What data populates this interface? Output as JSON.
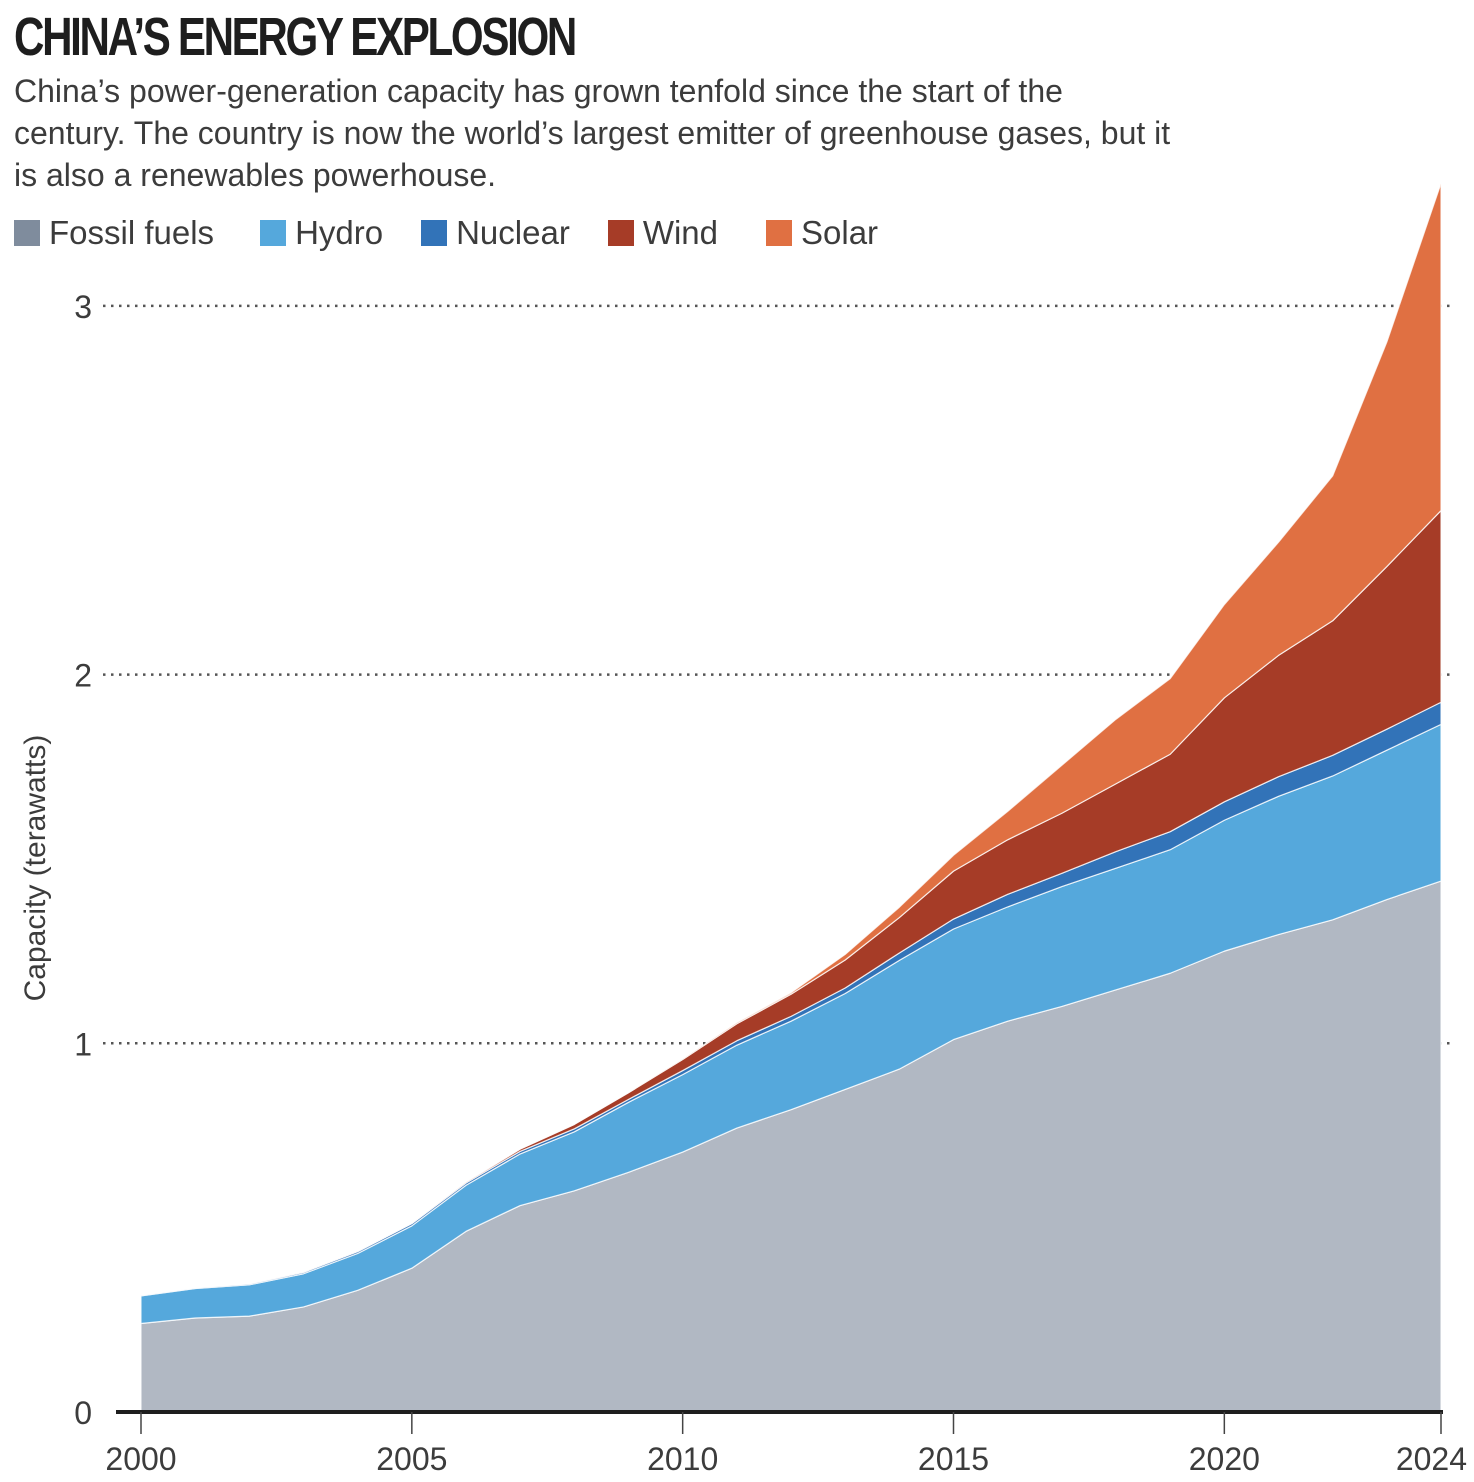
{
  "header": {
    "title": "CHINA’S ENERGY EXPLOSION",
    "subtitle": "China’s power-generation capacity has grown tenfold since the start of the century. The country is now the world’s largest emitter of greenhouse gases, but it is also a renewables powerhouse."
  },
  "chart_data": {
    "type": "area",
    "stacked": true,
    "title": "CHINA’S ENERGY EXPLOSION",
    "xlabel": "",
    "ylabel": "Capacity (terawatts)",
    "xlim": [
      2000,
      2024
    ],
    "ylim": [
      0,
      3.4
    ],
    "x_ticks": [
      2000,
      2005,
      2010,
      2015,
      2020,
      2024
    ],
    "y_ticks": [
      0,
      1,
      2,
      3
    ],
    "grid": "horizontal dotted at 1, 2, 3",
    "legend_placement": "top-left",
    "x": [
      2000,
      2001,
      2002,
      2003,
      2004,
      2005,
      2006,
      2007,
      2008,
      2009,
      2010,
      2011,
      2012,
      2013,
      2014,
      2015,
      2016,
      2017,
      2018,
      2019,
      2020,
      2021,
      2022,
      2023,
      2024
    ],
    "series": [
      {
        "name": "Fossil fuels",
        "color": "#b1b8c3",
        "legend_color": "#7f8c9d",
        "values": [
          0.24,
          0.255,
          0.26,
          0.285,
          0.33,
          0.39,
          0.49,
          0.56,
          0.6,
          0.65,
          0.705,
          0.77,
          0.82,
          0.875,
          0.93,
          1.01,
          1.06,
          1.1,
          1.145,
          1.19,
          1.25,
          1.295,
          1.335,
          1.39,
          1.44
        ]
      },
      {
        "name": "Hydro",
        "color": "#55a8dc",
        "legend_color": "#55a8dc",
        "values": [
          0.075,
          0.08,
          0.085,
          0.09,
          0.1,
          0.115,
          0.125,
          0.14,
          0.16,
          0.19,
          0.21,
          0.225,
          0.24,
          0.26,
          0.295,
          0.3,
          0.31,
          0.325,
          0.33,
          0.335,
          0.355,
          0.375,
          0.39,
          0.405,
          0.425
        ]
      },
      {
        "name": "Nuclear",
        "color": "#3273b8",
        "legend_color": "#3273b8",
        "values": [
          0.002,
          0.002,
          0.003,
          0.004,
          0.005,
          0.006,
          0.006,
          0.007,
          0.008,
          0.008,
          0.011,
          0.012,
          0.013,
          0.015,
          0.02,
          0.027,
          0.034,
          0.036,
          0.045,
          0.049,
          0.05,
          0.053,
          0.056,
          0.057,
          0.06
        ]
      },
      {
        "name": "Wind",
        "color": "#a63c27",
        "legend_color": "#a63c27",
        "values": [
          0.0,
          0.0,
          0.0,
          0.001,
          0.001,
          0.001,
          0.003,
          0.006,
          0.012,
          0.018,
          0.03,
          0.046,
          0.06,
          0.076,
          0.096,
          0.13,
          0.148,
          0.163,
          0.184,
          0.21,
          0.282,
          0.329,
          0.365,
          0.441,
          0.52
        ]
      },
      {
        "name": "Solar",
        "color": "#e07042",
        "legend_color": "#e07042",
        "values": [
          0.0,
          0.0,
          0.0,
          0.0,
          0.0,
          0.0,
          0.0,
          0.0,
          0.0,
          0.0,
          0.001,
          0.003,
          0.004,
          0.015,
          0.028,
          0.043,
          0.077,
          0.13,
          0.175,
          0.205,
          0.253,
          0.307,
          0.393,
          0.609,
          0.887
        ]
      }
    ]
  }
}
